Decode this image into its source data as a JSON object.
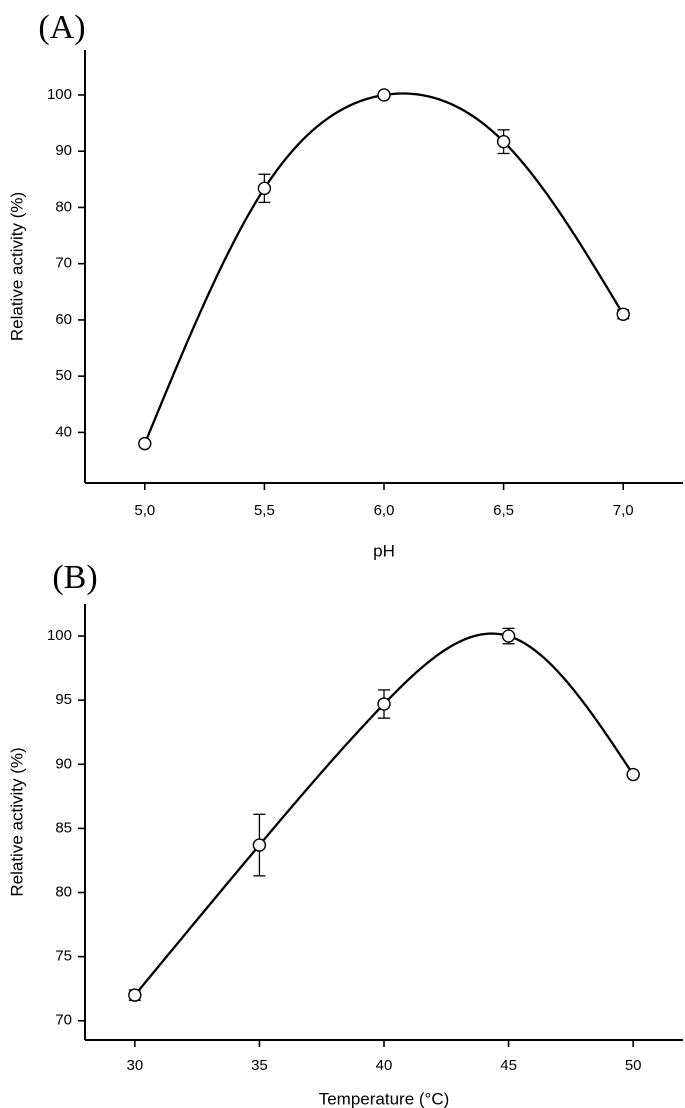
{
  "chart_data": [
    {
      "type": "line",
      "panel_label": "(A)",
      "xlabel": "pH",
      "ylabel": "Relative activity (%)",
      "x": [
        5.0,
        5.5,
        6.0,
        6.5,
        7.0
      ],
      "x_tick_labels": [
        "5,0",
        "5,5",
        "6,0",
        "6,5",
        "7,0"
      ],
      "values": [
        38,
        83.4,
        100,
        91.7,
        61
      ],
      "error": [
        0,
        2.5,
        0,
        2.1,
        0.8
      ],
      "xlim": [
        4.75,
        7.25
      ],
      "ylim": [
        31,
        108
      ],
      "yticks": [
        40,
        50,
        60,
        70,
        80,
        90,
        100
      ],
      "marker": "open-circle",
      "smooth_curve": true,
      "grid": false,
      "line_color": "#000000"
    },
    {
      "type": "line",
      "panel_label": "(B)",
      "xlabel": "Temperature (°C)",
      "ylabel": "Relative activity (%)",
      "x": [
        30,
        35,
        40,
        45,
        50
      ],
      "x_tick_labels": [
        "30",
        "35",
        "40",
        "45",
        "50"
      ],
      "values": [
        72,
        83.7,
        94.7,
        100,
        89.2
      ],
      "error": [
        0.4,
        2.4,
        1.1,
        0.6,
        0
      ],
      "xlim": [
        28,
        52
      ],
      "ylim": [
        68.5,
        102.5
      ],
      "yticks": [
        70,
        75,
        80,
        85,
        90,
        95,
        100
      ],
      "marker": "open-circle",
      "smooth_curve": true,
      "grid": false,
      "line_color": "#000000"
    }
  ]
}
